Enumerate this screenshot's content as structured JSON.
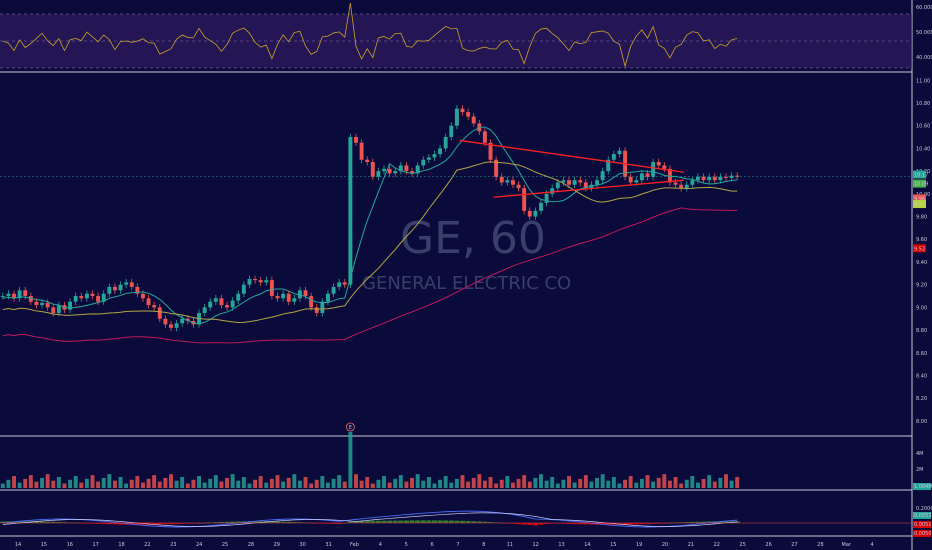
{
  "watermark": {
    "symbol": "GE, 60",
    "name": "GENERAL ELECTRIC CO"
  },
  "colors": {
    "background": "#0a0b3a",
    "up": "#26a69a",
    "down": "#ef5350",
    "rsi_band": "#3b1f6b",
    "rsi_line": "#c9a227",
    "ma_fast": "#26a69a",
    "ma_mid": "#b5a642",
    "ma_slow": "#c2185b",
    "trendline": "#ff2020",
    "macd_line": "#4a6bff",
    "signal_line": "#d0d0ff",
    "hist_pos": "#2e7d32",
    "hist_neg": "#d50000"
  },
  "rsi": {
    "labels": [
      "60.0000",
      "50.0000",
      "40.0000"
    ]
  },
  "price_axis": {
    "labels": [
      "11.00",
      "10.80",
      "10.60",
      "10.40",
      "10.20",
      "10.00",
      "9.80",
      "9.60",
      "9.40",
      "9.20",
      "9.00",
      "8.80",
      "8.60",
      "8.40",
      "8.20",
      "8.00"
    ]
  },
  "price_badges": [
    "10.17",
    "10.09",
    "9.96",
    "9.91",
    "9.52"
  ],
  "volume_axis": {
    "labels": [
      "4M",
      "2M"
    ],
    "badge": "1.004M"
  },
  "earnings_marker": "E",
  "macd": {
    "badges": [
      "0.0053",
      "0.0051",
      "0.0050"
    ],
    "label": "0.2000"
  },
  "date_axis": {
    "labels": [
      "14",
      "15",
      "16",
      "17",
      "18",
      "22",
      "23",
      "24",
      "25",
      "28",
      "29",
      "30",
      "31",
      "Feb",
      "4",
      "5",
      "6",
      "7",
      "8",
      "11",
      "12",
      "13",
      "14",
      "15",
      "19",
      "20",
      "21",
      "22",
      "25",
      "26",
      "27",
      "28",
      "Mar",
      "4"
    ]
  },
  "chart_data": {
    "type": "candlestick",
    "title": "GE, 60",
    "subtitle": "GENERAL ELECTRIC CO",
    "ylim": [
      7.92,
      11.02
    ],
    "close_series": [
      9.1,
      9.12,
      9.08,
      9.15,
      9.1,
      9.05,
      9.02,
      9.04,
      9.0,
      8.95,
      9.02,
      8.98,
      9.05,
      9.1,
      9.08,
      9.12,
      9.1,
      9.05,
      9.12,
      9.18,
      9.15,
      9.2,
      9.22,
      9.18,
      9.12,
      9.08,
      9.02,
      9.0,
      8.9,
      8.85,
      8.82,
      8.86,
      8.9,
      8.88,
      8.85,
      8.95,
      9.0,
      9.05,
      9.08,
      9.02,
      9.0,
      9.06,
      9.12,
      9.2,
      9.25,
      9.24,
      9.22,
      9.24,
      9.1,
      9.08,
      9.12,
      9.05,
      9.08,
      9.15,
      9.1,
      9.0,
      8.95,
      9.05,
      9.12,
      9.18,
      9.22,
      9.2,
      10.5,
      10.45,
      10.3,
      10.28,
      10.15,
      10.2,
      10.22,
      10.18,
      10.2,
      10.25,
      10.2,
      10.18,
      10.25,
      10.3,
      10.32,
      10.35,
      10.4,
      10.5,
      10.6,
      10.75,
      10.72,
      10.68,
      10.62,
      10.55,
      10.45,
      10.3,
      10.15,
      10.1,
      10.12,
      10.08,
      10.05,
      9.85,
      9.8,
      9.85,
      9.92,
      10.0,
      10.05,
      10.1,
      10.12,
      10.08,
      10.12,
      10.1,
      10.05,
      10.08,
      10.12,
      10.2,
      10.3,
      10.35,
      10.38,
      10.15,
      10.1,
      10.12,
      10.18,
      10.15,
      10.28,
      10.25,
      10.22,
      10.1,
      10.08,
      10.05,
      10.08,
      10.12,
      10.15,
      10.12,
      10.15,
      10.12,
      10.15,
      10.14,
      10.16,
      10.15
    ],
    "moving_averages": [
      {
        "name": "",
        "color": "#26a69a"
      },
      {
        "name": "",
        "color": "#b5a642"
      },
      {
        "name": "",
        "color": "#c2185b"
      }
    ],
    "trendlines": [
      {
        "from": [
          82,
          10.47
        ],
        "to": [
          122,
          10.19
        ]
      },
      {
        "from": [
          88,
          9.97
        ],
        "to": [
          122,
          10.12
        ]
      }
    ],
    "grid": true
  }
}
